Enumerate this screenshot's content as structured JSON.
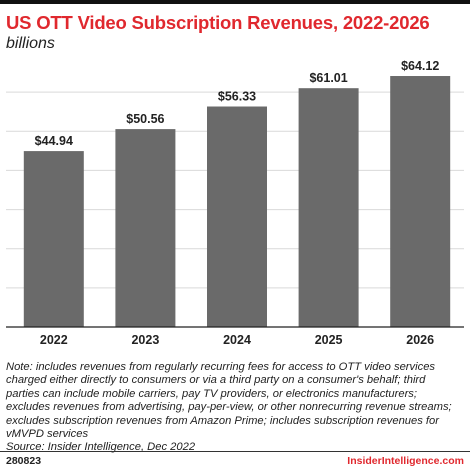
{
  "header": {
    "title": "US OTT Video Subscription Revenues, 2022-2026",
    "subtitle": "billions"
  },
  "colors": {
    "bar": "#6a6a6a",
    "title": "#e0282e",
    "grid": "#d9d9d9",
    "axis": "#222222"
  },
  "chart_data": {
    "type": "bar",
    "title": "US OTT Video Subscription Revenues, 2022-2026",
    "subtitle": "billions",
    "categories": [
      "2022",
      "2023",
      "2024",
      "2025",
      "2026"
    ],
    "values": [
      44.94,
      50.56,
      56.33,
      61.01,
      64.12
    ],
    "value_labels": [
      "$44.94",
      "$50.56",
      "$56.33",
      "$61.01",
      "$64.12"
    ],
    "xlabel": "",
    "ylabel": "",
    "ylim": [
      0,
      70
    ],
    "grid": true,
    "legend": "none"
  },
  "footer": {
    "note": "Note: includes revenues from regularly recurring fees for access to OTT video services charged either directly to consumers or via a third party on a consumer's behalf; third parties can include mobile carriers, pay TV providers, or electronics manufacturers; excludes revenues from advertising, pay-per-view, or other nonrecurring revenue streams; excludes subscription revenues from Amazon Prime; includes subscription revenues for vMVPD services",
    "source": "Source: Insider Intelligence, Dec 2022",
    "chart_id": "280823",
    "brand": "InsiderIntelligence.com"
  }
}
